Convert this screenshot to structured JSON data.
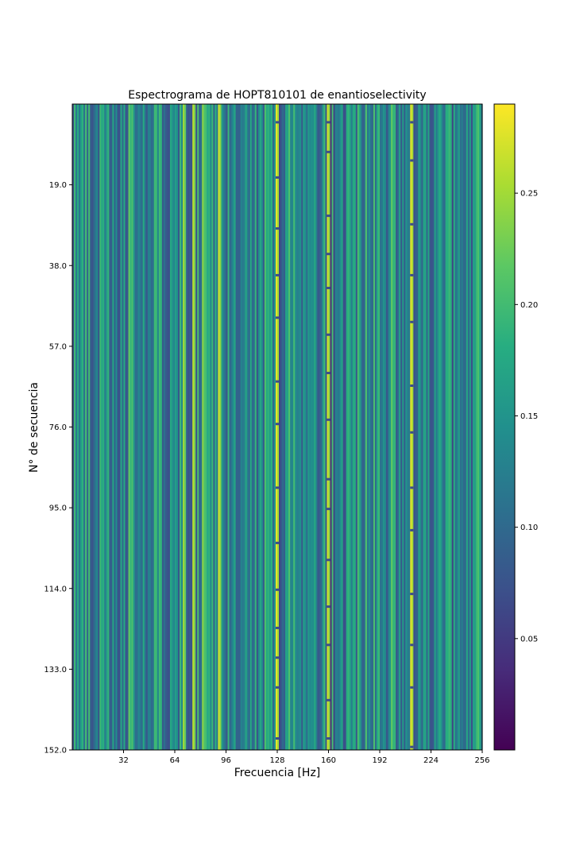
{
  "chart_data": {
    "type": "heatmap",
    "title": "Espectrograma de HOPT810101 de enantioselectivity",
    "xlabel": "Frecuencia [Hz]",
    "ylabel": "N° de secuencia",
    "xlim": [
      0,
      256
    ],
    "ylim": [
      0,
      152
    ],
    "y_inverted": true,
    "x_ticks": [
      32,
      64,
      96,
      128,
      160,
      192,
      224,
      256
    ],
    "x_tick_labels": [
      "32",
      "64",
      "96",
      "128",
      "160",
      "192",
      "224",
      "256"
    ],
    "y_ticks": [
      19,
      38,
      57,
      76,
      95,
      114,
      133,
      152
    ],
    "y_tick_labels": [
      "19.0",
      "38.0",
      "57.0",
      "76.0",
      "95.0",
      "114.0",
      "133.0",
      "152.0"
    ],
    "colormap": "viridis",
    "colorbar": {
      "vmin": 0.0,
      "vmax": 0.29,
      "ticks": [
        0.05,
        0.1,
        0.15,
        0.2,
        0.25
      ],
      "tick_labels": [
        "0.05",
        "0.10",
        "0.15",
        "0.20",
        "0.25"
      ]
    },
    "bright_bands": [
      {
        "freq": 36,
        "value": 0.22
      },
      {
        "freq": 70,
        "value": 0.25
      },
      {
        "freq": 76,
        "value": 0.26
      },
      {
        "freq": 82,
        "value": 0.24
      },
      {
        "freq": 92,
        "value": 0.27
      },
      {
        "freq": 128,
        "value": 0.28
      },
      {
        "freq": 160,
        "value": 0.27
      },
      {
        "freq": 200,
        "value": 0.22
      },
      {
        "freq": 212,
        "value": 0.28
      }
    ],
    "dark_bands": [
      {
        "freq": 130,
        "value": 0.06
      },
      {
        "freq": 162,
        "value": 0.04
      },
      {
        "freq": 164,
        "value": 0.06
      },
      {
        "freq": 214,
        "value": 0.07
      },
      {
        "freq": 238,
        "value": 0.06
      },
      {
        "freq": 250,
        "value": 0.07
      }
    ]
  }
}
